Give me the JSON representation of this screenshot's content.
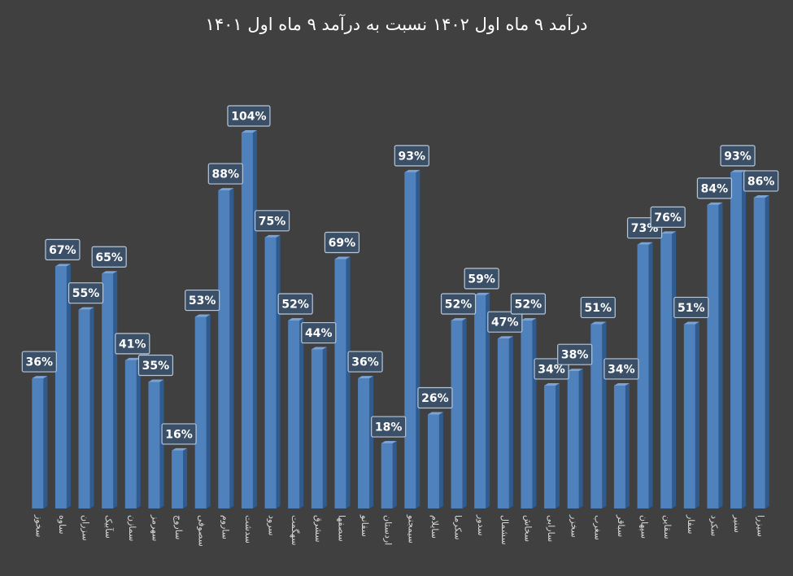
{
  "chart_data": {
    "type": "bar",
    "title": "درآمد ۹ ماه اول ۱۴۰۲ نسبت به درآمد ۹ ماه اول ۱۴۰۱",
    "xlabel": "",
    "ylabel": "",
    "ylim": [
      0,
      110
    ],
    "grid": false,
    "legend": "none",
    "categories": [
      "سخوز",
      "ساوه",
      "سزران",
      "سآبیک",
      "سمازن",
      "سهرمز",
      "ساروج",
      "سصوفی",
      "ساروم",
      "سدشت",
      "سرود",
      "سهگمت",
      "سشرق",
      "سصفها",
      "سفانو",
      "اردستان",
      "سیمجنو",
      "سایلام",
      "سکرما",
      "سدور",
      "سشمال",
      "سخاش",
      "سارابی",
      "سخزر",
      "سغرب",
      "سباقر",
      "سپهان",
      "سقاین",
      "سفار",
      "سکرد",
      "سنیر",
      "سیزرا"
    ],
    "values": [
      36,
      67,
      55,
      65,
      41,
      35,
      16,
      53,
      88,
      104,
      75,
      52,
      44,
      69,
      36,
      18,
      93,
      26,
      52,
      59,
      47,
      52,
      34,
      38,
      51,
      34,
      73,
      76,
      51,
      84,
      93,
      86
    ],
    "value_suffix": "%",
    "colors": {
      "background": "#404040",
      "bar": "#4f81bd",
      "bar_side": "#2f5b8f",
      "bar_top": "#7aa3d6",
      "label_box": "#3b4f66",
      "label_border": "#b7c7da",
      "text": "#ffffff"
    }
  }
}
